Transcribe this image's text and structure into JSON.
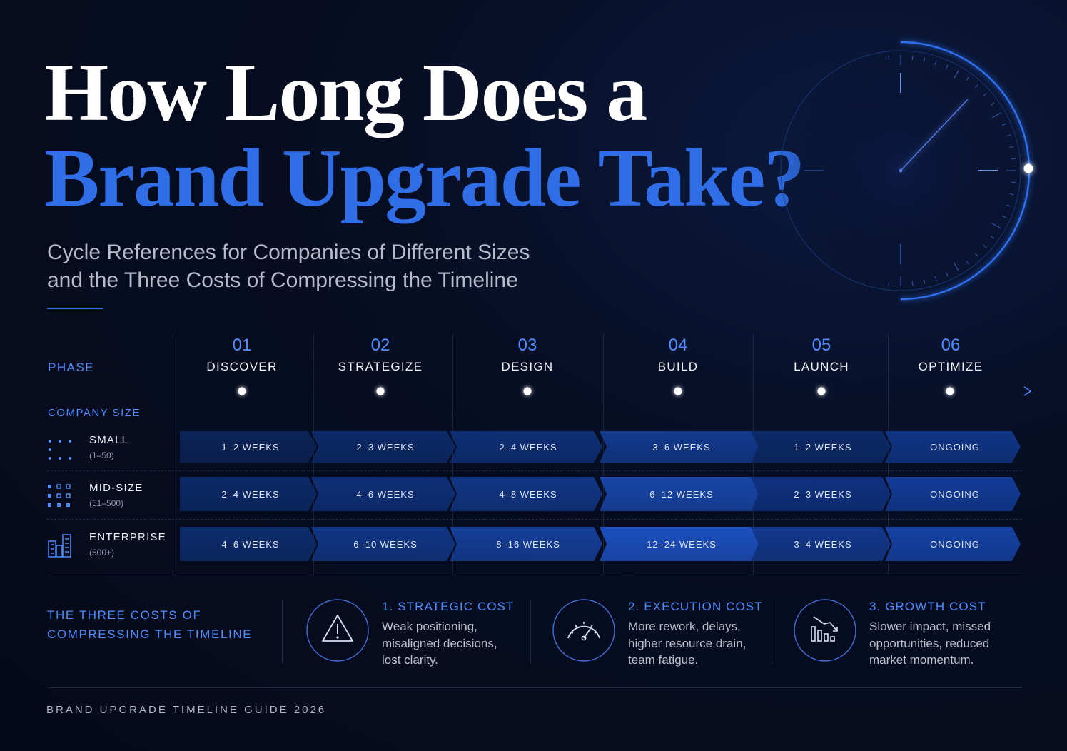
{
  "title": {
    "line1": "How Long Does a",
    "line2": "Brand Upgrade Take?"
  },
  "subtitle": {
    "line1": "Cycle References for Companies of Different Sizes",
    "line2": "and the Three Costs of Compressing the Timeline"
  },
  "phase_label": "PHASE",
  "company_size_label": "COMPANY SIZE",
  "phases": [
    {
      "num": "01",
      "name": "DISCOVER"
    },
    {
      "num": "02",
      "name": "STRATEGIZE"
    },
    {
      "num": "03",
      "name": "DESIGN"
    },
    {
      "num": "04",
      "name": "BUILD"
    },
    {
      "num": "05",
      "name": "LAUNCH"
    },
    {
      "num": "06",
      "name": "OPTIMIZE"
    }
  ],
  "sizes": [
    {
      "name": "SMALL",
      "range": "(1–50)",
      "icon": "dots-small-icon",
      "durations": [
        "1–2 WEEKS",
        "2–3 WEEKS",
        "2–4 WEEKS",
        "3–6 WEEKS",
        "1–2 WEEKS",
        "ONGOING"
      ]
    },
    {
      "name": "MID-SIZE",
      "range": "(51–500)",
      "icon": "grid-mid-icon",
      "durations": [
        "2–4 WEEKS",
        "4–6 WEEKS",
        "4–8 WEEKS",
        "6–12 WEEKS",
        "2–3 WEEKS",
        "ONGOING"
      ]
    },
    {
      "name": "ENTERPRISE",
      "range": "(500+)",
      "icon": "buildings-icon",
      "durations": [
        "4–6 WEEKS",
        "6–10 WEEKS",
        "8–16 WEEKS",
        "12–24 WEEKS",
        "3–4 WEEKS",
        "ONGOING"
      ]
    }
  ],
  "costs_heading": {
    "line1": "THE THREE COSTS OF",
    "line2": "COMPRESSING THE TIMELINE"
  },
  "costs": [
    {
      "title": "1. STRATEGIC COST",
      "icon": "warning-triangle-icon",
      "lines": [
        "Weak positioning,",
        "misaligned decisions,",
        "lost clarity."
      ]
    },
    {
      "title": "2. EXECUTION COST",
      "icon": "speedometer-icon",
      "lines": [
        "More rework, delays,",
        "higher resource drain,",
        "team fatigue."
      ]
    },
    {
      "title": "3. GROWTH COST",
      "icon": "declining-chart-icon",
      "lines": [
        "Slower impact, missed",
        "opportunities, reduced",
        "market momentum."
      ]
    }
  ],
  "footer": "BRAND UPGRADE TIMELINE GUIDE 2026",
  "colors": {
    "accent": "#2f6ee6",
    "accent_light": "#4d8dff",
    "background": "#060b1c"
  }
}
